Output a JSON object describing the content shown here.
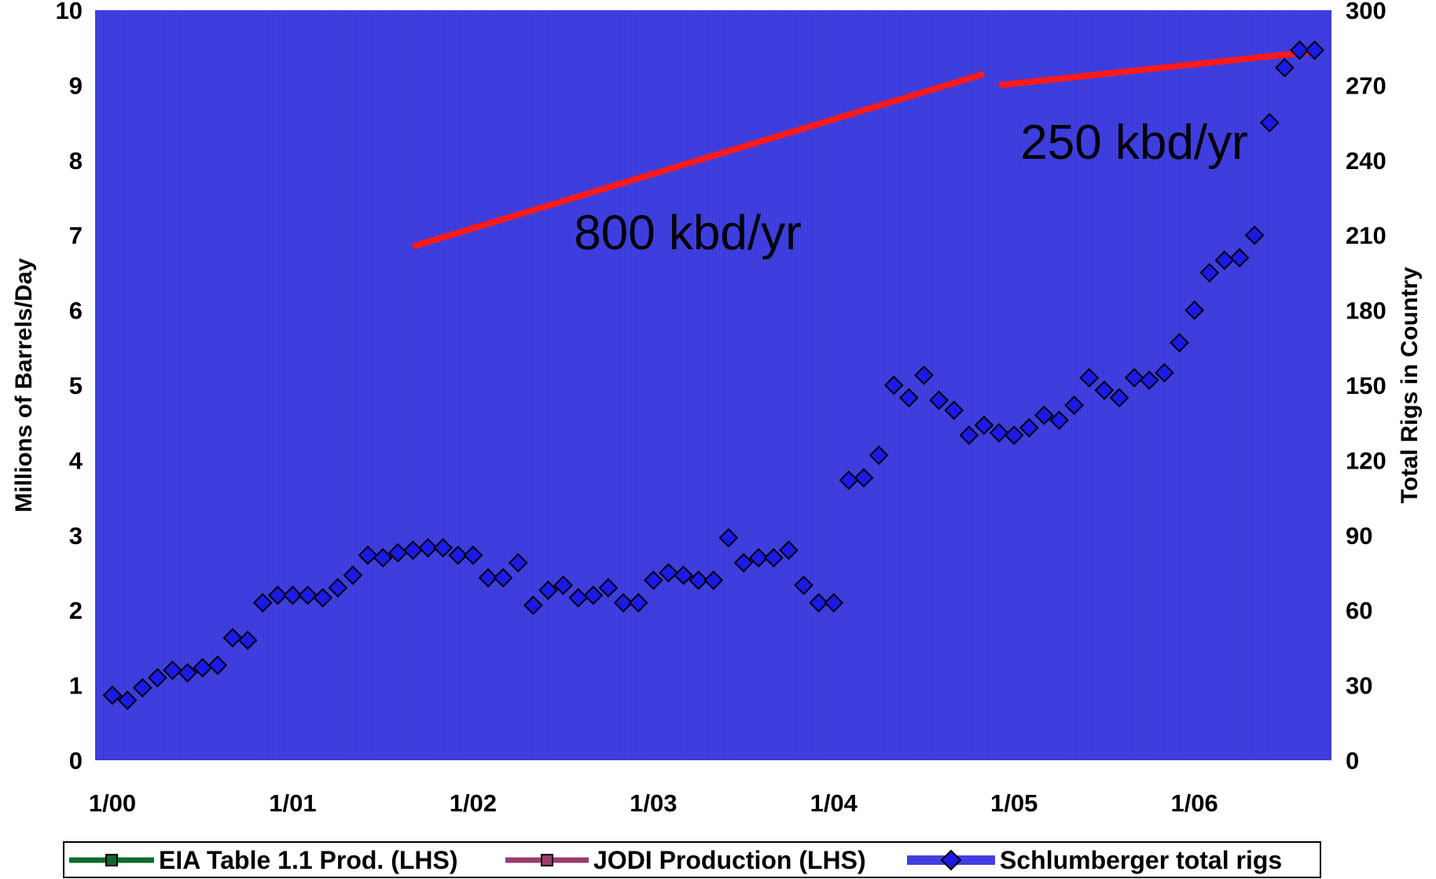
{
  "chart_data": {
    "type": "scatter",
    "title": "",
    "ylabel_left": "Millions of Barrels/Day",
    "ylabel_right": "Total Rigs in Country",
    "ylim_left": [
      0,
      10
    ],
    "ylim_right": [
      0,
      300
    ],
    "yticks_left": [
      "0",
      "1",
      "2",
      "3",
      "4",
      "5",
      "6",
      "7",
      "8",
      "9",
      "10"
    ],
    "yticks_right": [
      "0",
      "30",
      "60",
      "90",
      "120",
      "150",
      "180",
      "210",
      "240",
      "270",
      "300"
    ],
    "xticks": [
      "1/00",
      "1/01",
      "1/02",
      "1/03",
      "1/04",
      "1/05",
      "1/06"
    ],
    "x_start": "2000-01",
    "x_end": "2006-09",
    "plot_background": "#4040E0",
    "series": [
      {
        "name": "EIA Table 1.1 Prod. (LHS)",
        "axis": "left",
        "color": "#0B6B2B",
        "marker": "square",
        "values": []
      },
      {
        "name": "JODI Production (LHS)",
        "axis": "left",
        "color": "#9B3C6E",
        "marker": "square",
        "values": []
      },
      {
        "name": "Schlumberger total rigs",
        "axis": "right",
        "color": "#1A1AE6",
        "marker": "diamond",
        "points": [
          [
            "2000-01",
            26
          ],
          [
            "2000-02",
            24
          ],
          [
            "2000-03",
            29
          ],
          [
            "2000-04",
            33
          ],
          [
            "2000-05",
            36
          ],
          [
            "2000-06",
            35
          ],
          [
            "2000-07",
            37
          ],
          [
            "2000-08",
            38
          ],
          [
            "2000-09",
            49
          ],
          [
            "2000-10",
            48
          ],
          [
            "2000-11",
            63
          ],
          [
            "2000-12",
            66
          ],
          [
            "2001-01",
            66
          ],
          [
            "2001-02",
            66
          ],
          [
            "2001-03",
            65
          ],
          [
            "2001-04",
            69
          ],
          [
            "2001-05",
            74
          ],
          [
            "2001-06",
            82
          ],
          [
            "2001-07",
            81
          ],
          [
            "2001-08",
            83
          ],
          [
            "2001-09",
            84
          ],
          [
            "2001-10",
            85
          ],
          [
            "2001-11",
            85
          ],
          [
            "2001-12",
            82
          ],
          [
            "2002-01",
            82
          ],
          [
            "2002-02",
            73
          ],
          [
            "2002-03",
            73
          ],
          [
            "2002-04",
            79
          ],
          [
            "2002-05",
            62
          ],
          [
            "2002-06",
            68
          ],
          [
            "2002-07",
            70
          ],
          [
            "2002-08",
            65
          ],
          [
            "2002-09",
            66
          ],
          [
            "2002-10",
            69
          ],
          [
            "2002-11",
            63
          ],
          [
            "2002-12",
            63
          ],
          [
            "2003-01",
            72
          ],
          [
            "2003-02",
            75
          ],
          [
            "2003-03",
            74
          ],
          [
            "2003-04",
            72
          ],
          [
            "2003-05",
            72
          ],
          [
            "2003-06",
            89
          ],
          [
            "2003-07",
            79
          ],
          [
            "2003-08",
            81
          ],
          [
            "2003-09",
            81
          ],
          [
            "2003-10",
            84
          ],
          [
            "2003-11",
            70
          ],
          [
            "2003-12",
            63
          ],
          [
            "2004-01",
            63
          ],
          [
            "2004-02",
            112
          ],
          [
            "2004-03",
            113
          ],
          [
            "2004-04",
            122
          ],
          [
            "2004-05",
            150
          ],
          [
            "2004-06",
            145
          ],
          [
            "2004-07",
            154
          ],
          [
            "2004-08",
            144
          ],
          [
            "2004-09",
            140
          ],
          [
            "2004-10",
            130
          ],
          [
            "2004-11",
            134
          ],
          [
            "2004-12",
            131
          ],
          [
            "2005-01",
            130
          ],
          [
            "2005-02",
            133
          ],
          [
            "2005-03",
            138
          ],
          [
            "2005-04",
            136
          ],
          [
            "2005-05",
            142
          ],
          [
            "2005-06",
            153
          ],
          [
            "2005-07",
            148
          ],
          [
            "2005-08",
            145
          ],
          [
            "2005-09",
            153
          ],
          [
            "2005-10",
            152
          ],
          [
            "2005-11",
            155
          ],
          [
            "2005-12",
            167
          ],
          [
            "2006-01",
            180
          ],
          [
            "2006-02",
            195
          ],
          [
            "2006-03",
            200
          ],
          [
            "2006-04",
            201
          ],
          [
            "2006-05",
            210
          ],
          [
            "2006-06",
            255
          ],
          [
            "2006-07",
            277
          ],
          [
            "2006-08",
            284
          ],
          [
            "2006-09",
            284
          ]
        ]
      }
    ],
    "trendlines": [
      {
        "label": "800 kbd/yr",
        "color": "#FF1A1A",
        "from": [
          "2001-09",
          6.85
        ],
        "to": [
          "2004-11",
          9.15
        ]
      },
      {
        "label": "250 kbd/yr",
        "color": "#FF1A1A",
        "from": [
          "2004-12",
          9.0
        ],
        "to": [
          "2006-09",
          9.45
        ]
      }
    ],
    "legend": {
      "placement": "bottom",
      "entries": [
        "EIA Table 1.1 Prod. (LHS)",
        "JODI Production (LHS)",
        "Schlumberger total rigs"
      ]
    }
  }
}
